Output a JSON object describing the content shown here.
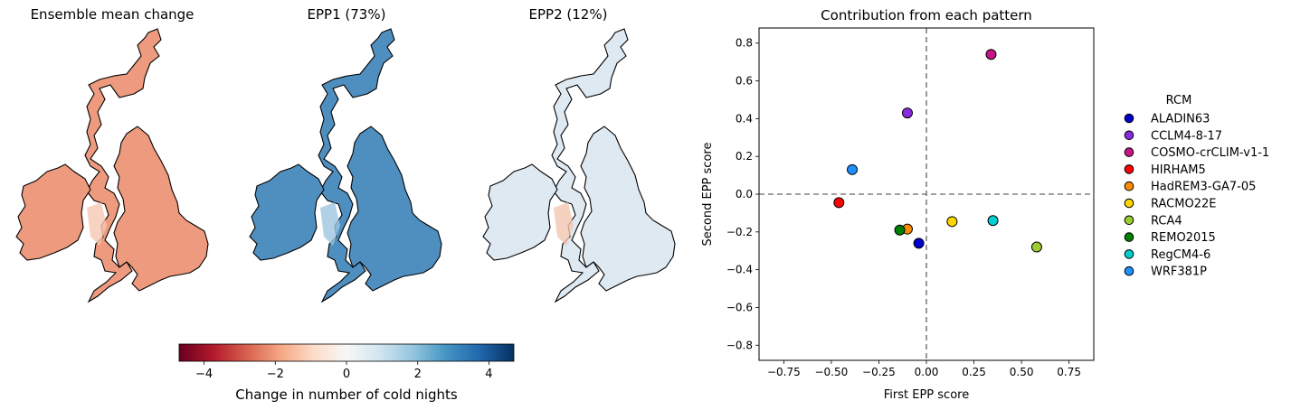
{
  "maps": [
    {
      "title": "Ensemble mean change",
      "fill": "#ee9a7e",
      "accent": "#f6c8b2"
    },
    {
      "title": "EPP1 (73%)",
      "fill": "#4f8fc0",
      "accent": "#9cc6e0"
    },
    {
      "title": "EPP2 (12%)",
      "fill": "#dfe9f2",
      "accent": "#f3c6b0"
    }
  ],
  "colorbar": {
    "label": "Change in number of cold nights",
    "ticks": [
      "−4",
      "−2",
      "0",
      "2",
      "4"
    ],
    "tick_values": [
      -4,
      -2,
      0,
      2,
      4
    ],
    "range": [
      -4.7,
      4.7
    ],
    "colors": [
      "#67001f",
      "#b2182b",
      "#d6604d",
      "#f4a582",
      "#fddbc7",
      "#f7f7f7",
      "#d1e5f0",
      "#92c5de",
      "#4393c3",
      "#2166ac",
      "#053061"
    ]
  },
  "chart_data": {
    "type": "scatter",
    "title": "Contribution from each pattern",
    "xlabel": "First EPP score",
    "ylabel": "Second EPP score",
    "xlim": [
      -0.88,
      0.88
    ],
    "ylim": [
      -0.88,
      0.88
    ],
    "xticks": [
      -0.75,
      -0.5,
      -0.25,
      0.0,
      0.25,
      0.5,
      0.75
    ],
    "xtick_labels": [
      "−0.75",
      "−0.50",
      "−0.25",
      "0.00",
      "0.25",
      "0.50",
      "0.75"
    ],
    "yticks": [
      -0.8,
      -0.6,
      -0.4,
      -0.2,
      0.0,
      0.2,
      0.4,
      0.6,
      0.8
    ],
    "ytick_labels": [
      "−0.8",
      "−0.6",
      "−0.4",
      "−0.2",
      "0.0",
      "0.2",
      "0.4",
      "0.6",
      "0.8"
    ],
    "reference_lines": {
      "x": 0,
      "y": 0,
      "style": "dashed",
      "color": "#808080"
    },
    "grid": false,
    "legend_title": "RCM",
    "legend_placement": "outside-right",
    "series": [
      {
        "name": "ALADIN63",
        "color": "#0000cd",
        "x": -0.04,
        "y": -0.26
      },
      {
        "name": "CCLM4-8-17",
        "color": "#8a2be2",
        "x": -0.1,
        "y": 0.43
      },
      {
        "name": "COSMO-crCLIM-v1-1",
        "color": "#c71585",
        "x": 0.34,
        "y": 0.74
      },
      {
        "name": "HIRHAM5",
        "color": "#ff0000",
        "x": -0.46,
        "y": -0.045
      },
      {
        "name": "HadREM3-GA7-05",
        "color": "#ff8c00",
        "x": -0.1,
        "y": -0.185
      },
      {
        "name": "RACMO22E",
        "color": "#ffd700",
        "x": 0.135,
        "y": -0.145
      },
      {
        "name": "RCA4",
        "color": "#9acd32",
        "x": 0.58,
        "y": -0.28
      },
      {
        "name": "REMO2015",
        "color": "#008000",
        "x": -0.14,
        "y": -0.19
      },
      {
        "name": "RegCM4-6",
        "color": "#00ced1",
        "x": 0.35,
        "y": -0.14
      },
      {
        "name": "WRF381P",
        "color": "#1e90ff",
        "x": -0.39,
        "y": 0.13
      }
    ]
  }
}
